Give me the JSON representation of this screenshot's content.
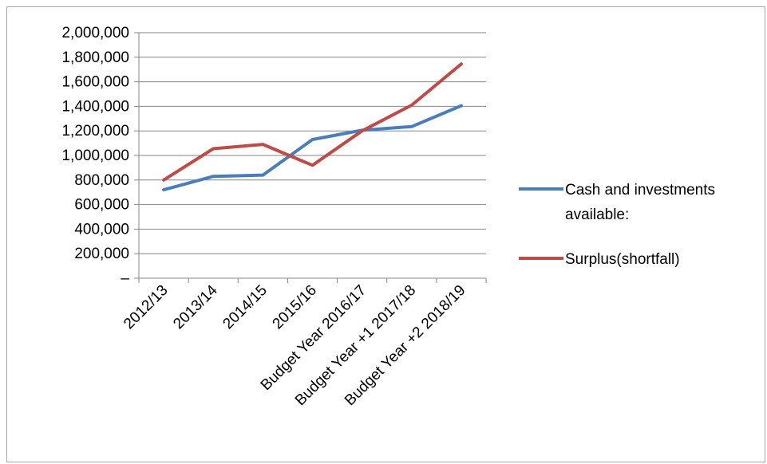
{
  "chart_data": {
    "type": "line",
    "title": "",
    "xlabel": "",
    "ylabel": "",
    "categories": [
      "2012/13",
      "2013/14",
      "2014/15",
      "2015/16",
      "Budget Year 2016/17",
      "Budget Year +1 2017/18",
      "Budget Year +2 2018/19"
    ],
    "ylim": [
      0,
      2000000
    ],
    "y_ticks": [
      0,
      200000,
      400000,
      600000,
      800000,
      1000000,
      1200000,
      1400000,
      1600000,
      1800000,
      2000000
    ],
    "y_tick_labels": [
      "–",
      "200,000",
      "400,000",
      "600,000",
      "800,000",
      "1,000,000",
      "1,200,000",
      "1,400,000",
      "1,600,000",
      "1,800,000",
      "2,000,000"
    ],
    "grid": true,
    "legend_position": "right",
    "series": [
      {
        "name": "Cash and investments available:",
        "legend_lines": [
          "Cash and investments",
          "available:"
        ],
        "color": "#4a7ebb",
        "values": [
          720000,
          830000,
          840000,
          1130000,
          1205000,
          1235000,
          1405000
        ]
      },
      {
        "name": "Surplus(shortfall)",
        "legend_lines": [
          "Surplus(shortfall)"
        ],
        "color": "#be4b48",
        "values": [
          800000,
          1055000,
          1090000,
          920000,
          1200000,
          1410000,
          1745000
        ]
      }
    ]
  }
}
